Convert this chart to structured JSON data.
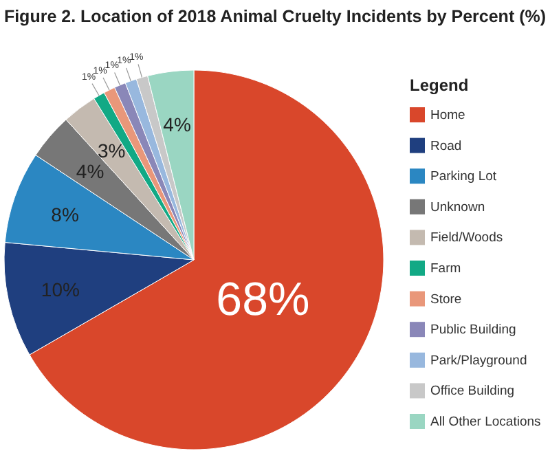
{
  "chart_data": {
    "type": "pie",
    "title": "Figure 2. Location of 2018 Animal Cruelty Incidents by Percent (%)",
    "legend_title": "Legend",
    "legend": "right",
    "categories": [
      "Home",
      "Road",
      "Parking Lot",
      "Unknown",
      "Field/Woods",
      "Farm",
      "Store",
      "Public Building",
      "Park/Playground",
      "Office Building",
      "All Other Locations"
    ],
    "values": [
      68,
      10,
      8,
      4,
      3,
      1,
      1,
      1,
      1,
      1,
      4
    ],
    "value_labels": [
      "68%",
      "10%",
      "8%",
      "4%",
      "3%",
      "1%",
      "1%",
      "1%",
      "1%",
      "1%",
      "4%"
    ],
    "colors": [
      "#d9472b",
      "#1f3f7f",
      "#2b87c2",
      "#777777",
      "#c4bab0",
      "#12a985",
      "#e9977a",
      "#8a87b8",
      "#98b8de",
      "#c8c8c8",
      "#9ad6c2"
    ]
  }
}
